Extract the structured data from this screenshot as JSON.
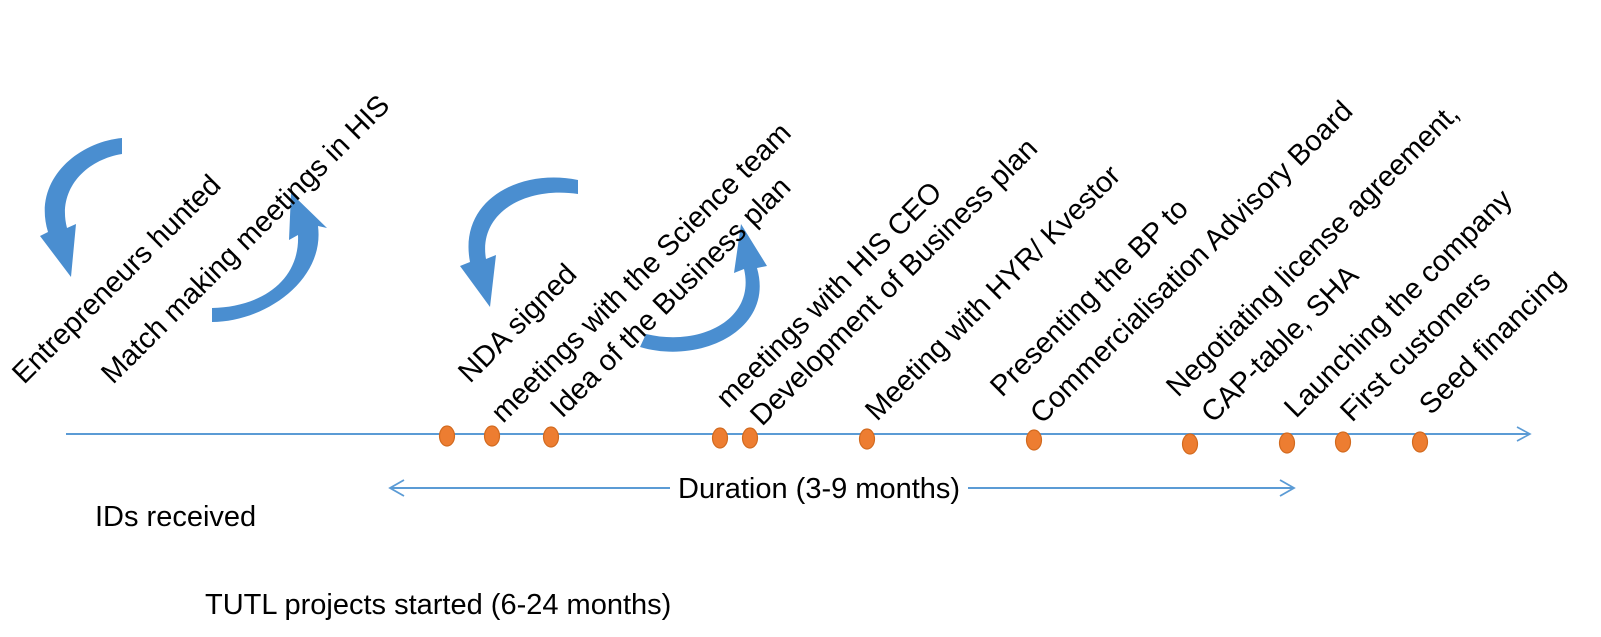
{
  "colors": {
    "line": "#5b9bd5",
    "curved_arrow": "#4a8ed0",
    "milestone": "#ed7d31",
    "milestone_edge": "#d26a1f",
    "text": "#000000"
  },
  "icons": [
    "curved-arrow-icon",
    "arrowhead-icon"
  ],
  "milestone_labels": [
    "Entrepreneurs hunted",
    "Match making meetings in HIS",
    "NDA signed",
    "meetings with the Science team",
    "Idea of the Business plan",
    "meetings with HIS CEO",
    "Development of Business plan",
    "Meeting with HYR/ Kvestor",
    "Presenting the BP to",
    "Commercialisation Advisory Board",
    "Negotiating license agreement,",
    "CAP-table, SHA",
    "Launching the company",
    "First customers",
    "Seed financing"
  ],
  "duration_label": "Duration (3-9 months)",
  "ids_label": "IDs received",
  "tutl_label": "TUTL projects started (6-24 months)"
}
